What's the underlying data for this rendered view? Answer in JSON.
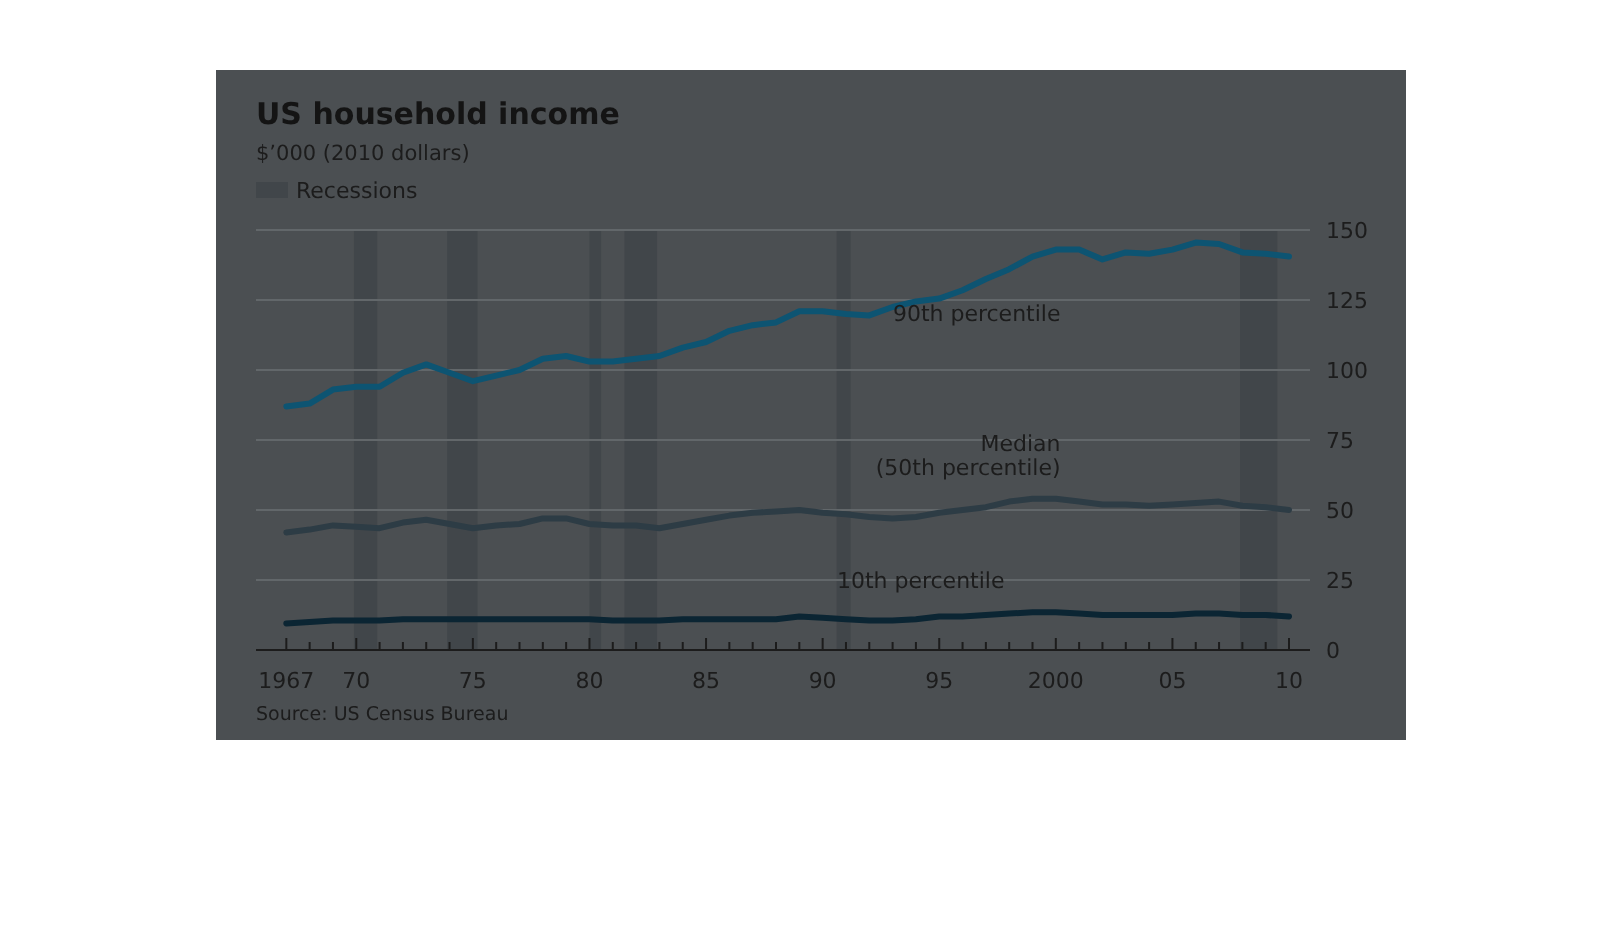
{
  "chart_data": {
    "type": "line",
    "title": "US household income",
    "subtitle": "$’000 (2010 dollars)",
    "x": [
      1967,
      1968,
      1969,
      1970,
      1971,
      1972,
      1973,
      1974,
      1975,
      1976,
      1977,
      1978,
      1979,
      1980,
      1981,
      1982,
      1983,
      1984,
      1985,
      1986,
      1987,
      1988,
      1989,
      1990,
      1991,
      1992,
      1993,
      1994,
      1995,
      1996,
      1997,
      1998,
      1999,
      2000,
      2001,
      2002,
      2003,
      2004,
      2005,
      2006,
      2007,
      2008,
      2009,
      2010
    ],
    "series": [
      {
        "name": "90th percentile",
        "color": "#0d5472",
        "values": [
          87,
          88,
          93,
          94,
          94,
          99,
          102,
          99,
          96,
          98,
          100,
          104,
          105,
          103,
          103,
          104,
          105,
          108,
          110,
          114,
          116,
          117,
          121,
          121,
          120,
          119.5,
          122.5,
          124.5,
          125.5,
          128.5,
          132.5,
          136,
          140.5,
          143,
          143,
          139.5,
          142,
          141.5,
          143,
          145.5,
          145,
          142,
          141.5,
          140.5
        ]
      },
      {
        "name": "Median (50th percentile)",
        "color": "#2d3c45",
        "values": [
          42,
          43,
          44.5,
          44,
          43.5,
          45.5,
          46.5,
          45,
          43.5,
          44.5,
          45,
          47,
          47,
          45,
          44.5,
          44.5,
          43.5,
          45,
          46.5,
          48,
          49,
          49.5,
          50,
          49,
          48.5,
          47.5,
          47,
          47.5,
          49,
          50,
          51,
          53,
          54,
          54,
          53,
          52,
          52,
          51.5,
          52,
          52.5,
          53,
          51.5,
          51,
          50
        ]
      },
      {
        "name": "10th percentile",
        "color": "#0b2533",
        "values": [
          9.5,
          10,
          10.5,
          10.5,
          10.5,
          11,
          11,
          11,
          11,
          11,
          11,
          11,
          11,
          11,
          10.5,
          10.5,
          10.5,
          11,
          11,
          11,
          11,
          11,
          12,
          11.5,
          11,
          10.5,
          10.5,
          11,
          12,
          12,
          12.5,
          13,
          13.5,
          13.5,
          13,
          12.5,
          12.5,
          12.5,
          12.5,
          13,
          13,
          12.5,
          12.5,
          12
        ]
      }
    ],
    "xlim": [
      1965.7,
      2010.9
    ],
    "xticks": [
      1967,
      {
        "value": 1968,
        "label": null
      },
      {
        "value": 1969,
        "label": null
      },
      {
        "value": 1970,
        "label": "70"
      },
      {
        "value": 1971,
        "label": null
      },
      {
        "value": 1972,
        "label": null
      },
      {
        "value": 1973,
        "label": null
      },
      {
        "value": 1974,
        "label": null
      },
      {
        "value": 1975,
        "label": "75"
      },
      {
        "value": 1976,
        "label": null
      },
      {
        "value": 1977,
        "label": null
      },
      {
        "value": 1978,
        "label": null
      },
      {
        "value": 1979,
        "label": null
      },
      {
        "value": 1980,
        "label": "80"
      },
      {
        "value": 1981,
        "label": null
      },
      {
        "value": 1982,
        "label": null
      },
      {
        "value": 1983,
        "label": null
      },
      {
        "value": 1984,
        "label": null
      },
      {
        "value": 1985,
        "label": "85"
      },
      {
        "value": 1986,
        "label": null
      },
      {
        "value": 1987,
        "label": null
      },
      {
        "value": 1988,
        "label": null
      },
      {
        "value": 1989,
        "label": null
      },
      {
        "value": 1990,
        "label": "90"
      },
      {
        "value": 1991,
        "label": null
      },
      {
        "value": 1992,
        "label": null
      },
      {
        "value": 1993,
        "label": null
      },
      {
        "value": 1994,
        "label": null
      },
      {
        "value": 1995,
        "label": "95"
      },
      {
        "value": 1996,
        "label": null
      },
      {
        "value": 1997,
        "label": null
      },
      {
        "value": 1998,
        "label": null
      },
      {
        "value": 1999,
        "label": null
      },
      2000,
      {
        "value": 2001,
        "label": null
      },
      {
        "value": 2002,
        "label": null
      },
      {
        "value": 2003,
        "label": null
      },
      {
        "value": 2004,
        "label": null
      },
      {
        "value": 2005,
        "label": "05"
      },
      {
        "value": 2006,
        "label": null
      },
      {
        "value": 2007,
        "label": null
      },
      {
        "value": 2008,
        "label": null
      },
      {
        "value": 2009,
        "label": null
      },
      {
        "value": 2010,
        "label": "10"
      }
    ],
    "ylim": [
      0,
      150
    ],
    "yticks": [
      0,
      25,
      50,
      75,
      100,
      125,
      150
    ],
    "grid": "y",
    "legend": "top left",
    "marker": "none",
    "line_style": "solid",
    "bands": [
      {
        "axis": "x",
        "from": 1969.9,
        "to": 1970.9,
        "label": "Recessions",
        "color": "#41464a"
      },
      {
        "axis": "x",
        "from": 1973.9,
        "to": 1975.2,
        "label": null,
        "color": "#41464a"
      },
      {
        "axis": "x",
        "from": 1980.0,
        "to": 1980.5,
        "label": null,
        "color": "#41464a"
      },
      {
        "axis": "x",
        "from": 1981.5,
        "to": 1982.9,
        "label": null,
        "color": "#41464a"
      },
      {
        "axis": "x",
        "from": 1990.6,
        "to": 1991.2,
        "label": null,
        "color": "#41464a"
      },
      {
        "axis": "x",
        "from": 2007.9,
        "to": 2009.5,
        "label": null,
        "color": "#41464a"
      }
    ],
    "annotations": [
      "Source: US Census Bureau"
    ]
  }
}
